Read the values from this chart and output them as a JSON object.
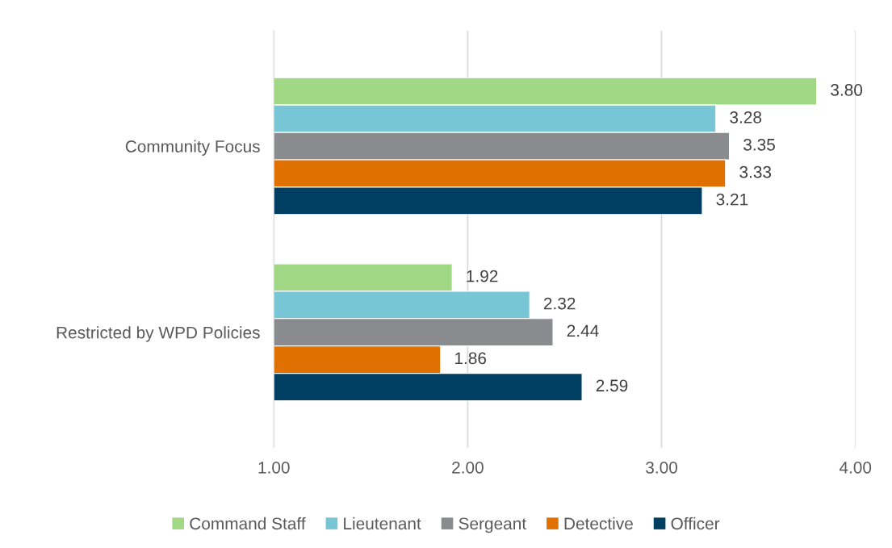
{
  "chart_data": {
    "type": "bar",
    "orientation": "horizontal",
    "categories": [
      "Community Focus",
      "Restricted by WPD Policies"
    ],
    "series": [
      {
        "name": "Command Staff",
        "color": "#a0d886",
        "values": [
          3.8,
          1.92
        ],
        "value_labels": [
          "3.80",
          "1.92"
        ]
      },
      {
        "name": "Lieutenant",
        "color": "#78c5d6",
        "values": [
          3.28,
          2.32
        ],
        "value_labels": [
          "3.28",
          "2.32"
        ]
      },
      {
        "name": "Sergeant",
        "color": "#898b8e",
        "values": [
          3.35,
          2.44
        ],
        "value_labels": [
          "3.35",
          "2.44"
        ]
      },
      {
        "name": "Detective",
        "color": "#e07000",
        "values": [
          3.33,
          1.86
        ],
        "value_labels": [
          "3.33",
          "1.86"
        ]
      },
      {
        "name": "Officer",
        "color": "#003f62",
        "values": [
          3.21,
          2.59
        ],
        "value_labels": [
          "3.21",
          "2.59"
        ]
      }
    ],
    "xlim": [
      1,
      4
    ],
    "xticks": [
      {
        "value": 1,
        "label": "1.00"
      },
      {
        "value": 2,
        "label": "2.00"
      },
      {
        "value": 3,
        "label": "3.00"
      },
      {
        "value": 4,
        "label": "4.00"
      }
    ],
    "grid": "x",
    "legend": "bottom"
  }
}
